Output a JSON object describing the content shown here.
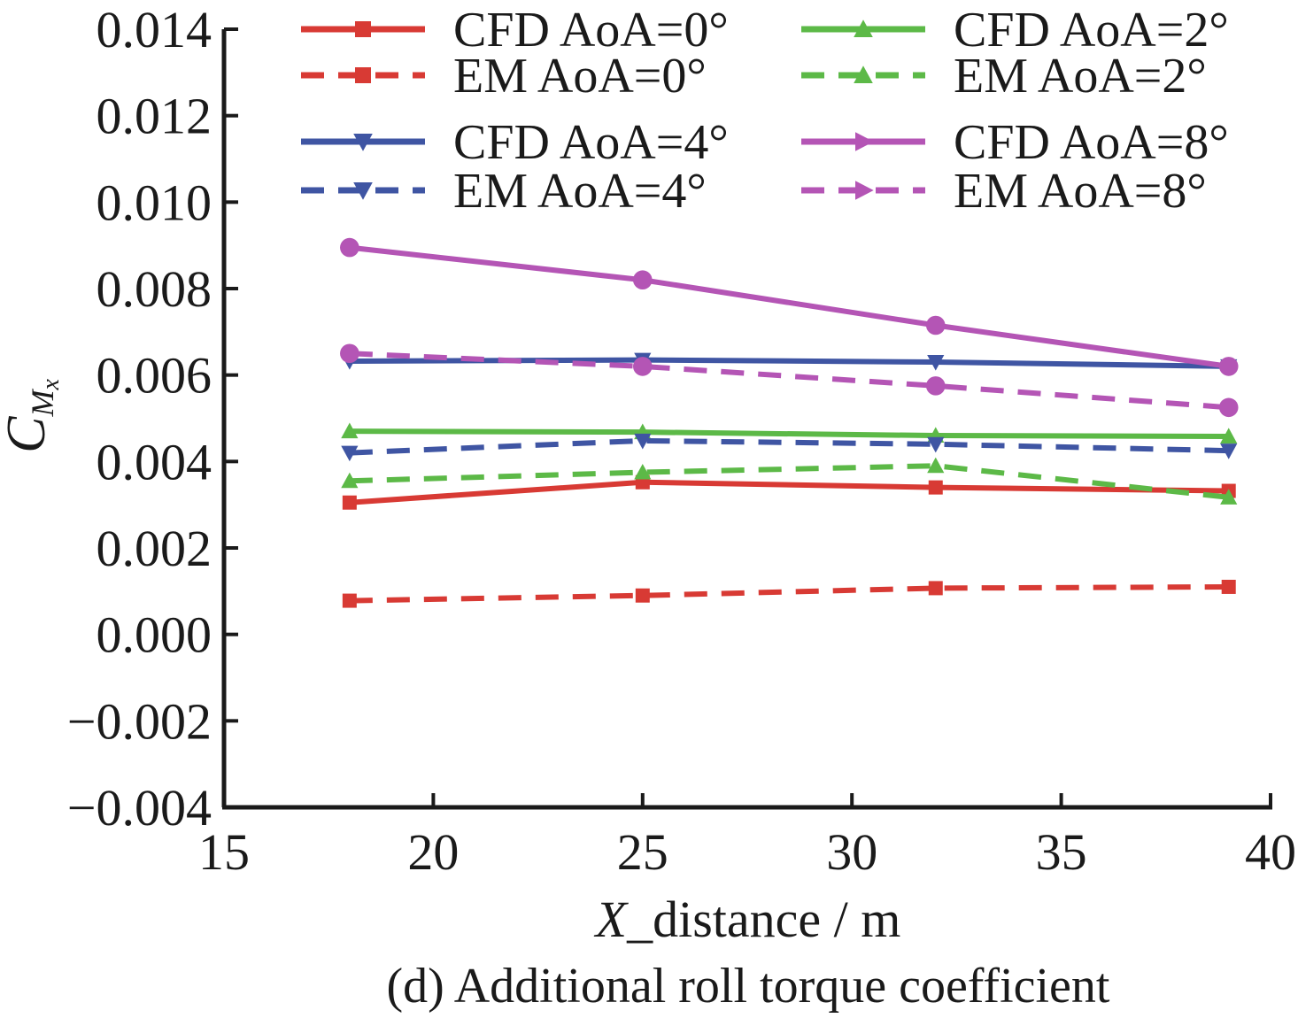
{
  "chart_data": {
    "type": "line",
    "title": "(d) Additional roll torque coefficient",
    "xlabel": {
      "italic": "X",
      "rest": "_distance / m"
    },
    "ylabel": {
      "main": "C",
      "sub": "M",
      "subsub": "x"
    },
    "xlim": [
      15,
      40
    ],
    "ylim": [
      -0.004,
      0.014
    ],
    "xticks": [
      15,
      20,
      25,
      30,
      35,
      40
    ],
    "yticks": [
      -0.004,
      -0.002,
      0.0,
      0.002,
      0.004,
      0.006,
      0.008,
      0.01,
      0.012,
      0.014
    ],
    "ytick_labels": [
      "−0.004",
      "−0.002",
      "0.000",
      "0.002",
      "0.004",
      "0.006",
      "0.008",
      "0.010",
      "0.012",
      "0.014"
    ],
    "grid": false,
    "legend_position": "top, two columns",
    "series": [
      {
        "name": "CFD AoA=0°",
        "color": "#d83a34",
        "dash": "solid",
        "marker": "square",
        "x": [
          18,
          25,
          32,
          39
        ],
        "y": [
          0.00305,
          0.00352,
          0.0034,
          0.00332
        ]
      },
      {
        "name": "EM AoA=0°",
        "color": "#d83a34",
        "dash": "dashed",
        "marker": "square",
        "x": [
          18,
          25,
          32,
          39
        ],
        "y": [
          0.00078,
          0.0009,
          0.00107,
          0.0011
        ]
      },
      {
        "name": "CFD AoA=2°",
        "color": "#5cb947",
        "dash": "solid",
        "marker": "triangle-up",
        "x": [
          18,
          25,
          32,
          39
        ],
        "y": [
          0.0047,
          0.00468,
          0.0046,
          0.00458
        ]
      },
      {
        "name": "EM AoA=2°",
        "color": "#5cb947",
        "dash": "dashed",
        "marker": "triangle-up",
        "x": [
          18,
          25,
          32,
          39
        ],
        "y": [
          0.00355,
          0.00375,
          0.0039,
          0.00317
        ]
      },
      {
        "name": "CFD AoA=4°",
        "color": "#3f55a3",
        "dash": "solid",
        "marker": "triangle-down",
        "x": [
          18,
          25,
          32,
          39
        ],
        "y": [
          0.00632,
          0.00635,
          0.0063,
          0.0062
        ]
      },
      {
        "name": "EM AoA=4°",
        "color": "#3f55a3",
        "dash": "dashed",
        "marker": "triangle-down",
        "x": [
          18,
          25,
          32,
          39
        ],
        "y": [
          0.0042,
          0.00448,
          0.0044,
          0.00425
        ]
      },
      {
        "name": "CFD AoA=8°",
        "color": "#b455b5",
        "dash": "solid",
        "marker": "circle",
        "legend_marker": "triangle-right",
        "x": [
          18,
          25,
          32,
          39
        ],
        "y": [
          0.00895,
          0.0082,
          0.00715,
          0.0062
        ]
      },
      {
        "name": "EM AoA=8°",
        "color": "#b455b5",
        "dash": "dashed",
        "marker": "circle",
        "legend_marker": "triangle-right",
        "x": [
          18,
          25,
          32,
          39
        ],
        "y": [
          0.0065,
          0.0062,
          0.00575,
          0.00525
        ]
      }
    ]
  }
}
